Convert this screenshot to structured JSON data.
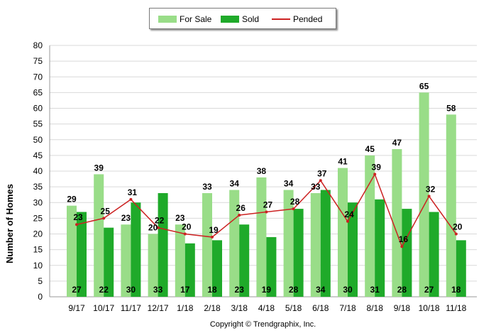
{
  "chart_data": {
    "type": "bar",
    "categories": [
      "9/17",
      "10/17",
      "11/17",
      "12/17",
      "1/18",
      "2/18",
      "3/18",
      "4/18",
      "5/18",
      "6/18",
      "7/18",
      "8/18",
      "9/18",
      "10/18",
      "11/18"
    ],
    "series": [
      {
        "name": "For Sale",
        "type": "bar",
        "color": "#99dd88",
        "values": [
          29,
          39,
          23,
          20,
          23,
          33,
          34,
          38,
          34,
          33,
          41,
          45,
          47,
          65,
          58
        ]
      },
      {
        "name": "Sold",
        "type": "bar",
        "color": "#1faa2a",
        "values": [
          27,
          22,
          30,
          33,
          17,
          18,
          23,
          19,
          28,
          34,
          30,
          31,
          28,
          27,
          18
        ]
      },
      {
        "name": "Pended",
        "type": "line",
        "color": "#cc2222",
        "values": [
          23,
          25,
          31,
          22,
          20,
          19,
          26,
          27,
          28,
          37,
          24,
          39,
          16,
          32,
          20
        ]
      }
    ],
    "title": "",
    "xlabel": "",
    "ylabel": "Number of Homes",
    "ylim": [
      0,
      80
    ],
    "yticks": [
      0,
      5,
      10,
      15,
      20,
      25,
      30,
      35,
      40,
      45,
      50,
      55,
      60,
      65,
      70,
      75,
      80
    ],
    "grid": true,
    "legend_position": "top-center"
  },
  "legend": {
    "items": [
      {
        "label": "For Sale",
        "kind": "bar",
        "color": "#99dd88"
      },
      {
        "label": "Sold",
        "kind": "bar",
        "color": "#1faa2a"
      },
      {
        "label": "Pended",
        "kind": "line",
        "color": "#cc2222"
      }
    ]
  },
  "footer": {
    "copyright": "Copyright © Trendgraphix, Inc."
  }
}
